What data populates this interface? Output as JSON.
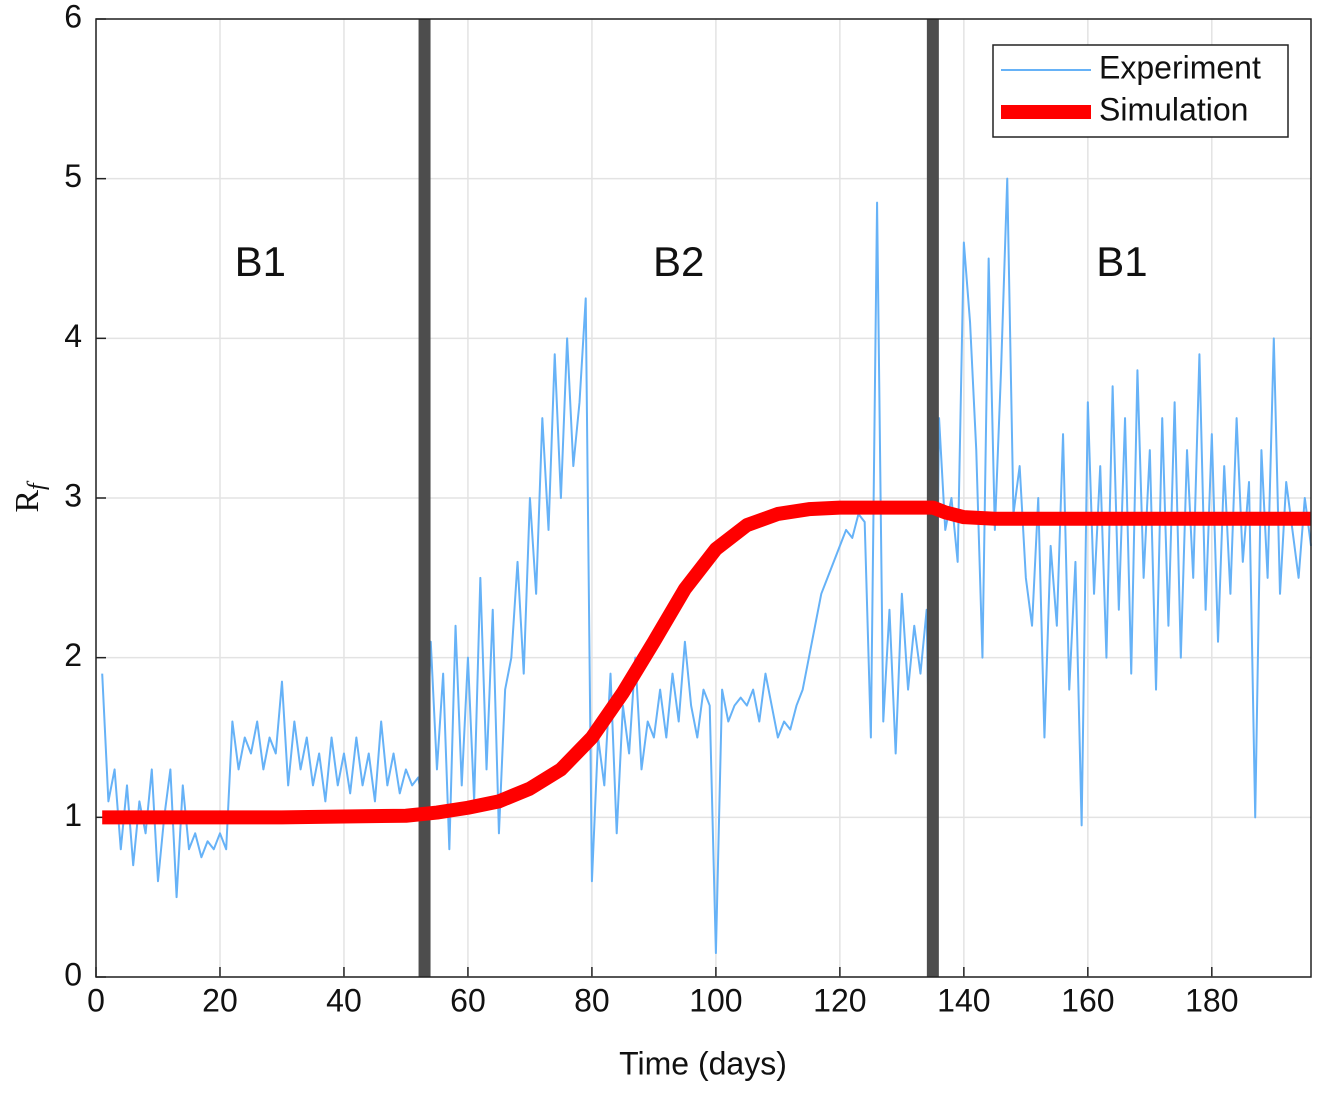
{
  "chart_data": {
    "type": "line",
    "xlabel": "Time (days)",
    "ylabel": "R",
    "ylabel_subscript": "f",
    "xlim": [
      0,
      196
    ],
    "ylim": [
      0,
      6
    ],
    "xticks": [
      0,
      20,
      40,
      60,
      80,
      100,
      120,
      140,
      160,
      180
    ],
    "yticks": [
      0,
      1,
      2,
      3,
      4,
      5,
      6
    ],
    "grid": true,
    "legend": "upper right",
    "vlines": [
      53,
      135
    ],
    "vline_color": "#4d4d4d",
    "annotations": [
      "B1",
      "B2",
      "B1"
    ],
    "series": [
      {
        "name": "Experiment",
        "color": "#66b2f7",
        "width": 2,
        "x": [
          1,
          2,
          3,
          4,
          5,
          6,
          7,
          8,
          9,
          10,
          11,
          12,
          13,
          14,
          15,
          16,
          17,
          18,
          19,
          20,
          21,
          22,
          23,
          24,
          25,
          26,
          27,
          28,
          29,
          30,
          31,
          32,
          33,
          34,
          35,
          36,
          37,
          38,
          39,
          40,
          41,
          42,
          43,
          44,
          45,
          46,
          47,
          48,
          49,
          50,
          51,
          52,
          53,
          54,
          55,
          56,
          57,
          58,
          59,
          60,
          61,
          62,
          63,
          64,
          65,
          66,
          67,
          68,
          69,
          70,
          71,
          72,
          73,
          74,
          75,
          76,
          77,
          78,
          79,
          80,
          81,
          82,
          83,
          84,
          85,
          86,
          87,
          88,
          89,
          90,
          91,
          92,
          93,
          94,
          95,
          96,
          97,
          98,
          99,
          100,
          101,
          102,
          103,
          104,
          105,
          106,
          107,
          108,
          109,
          110,
          111,
          112,
          113,
          114,
          115,
          116,
          117,
          118,
          119,
          120,
          121,
          122,
          123,
          124,
          125,
          126,
          127,
          128,
          129,
          130,
          131,
          132,
          133,
          134,
          135,
          136,
          137,
          138,
          139,
          140,
          141,
          142,
          143,
          144,
          145,
          146,
          147,
          148,
          149,
          150,
          151,
          152,
          153,
          154,
          155,
          156,
          157,
          158,
          159,
          160,
          161,
          162,
          163,
          164,
          165,
          166,
          167,
          168,
          169,
          170,
          171,
          172,
          173,
          174,
          175,
          176,
          177,
          178,
          179,
          180,
          181,
          182,
          183,
          184,
          185,
          186,
          187,
          188,
          189,
          190,
          191,
          192,
          193,
          194,
          195,
          196
        ],
        "values": [
          1.9,
          1.1,
          1.3,
          0.8,
          1.2,
          0.7,
          1.1,
          0.9,
          1.3,
          0.6,
          1.0,
          1.3,
          0.5,
          1.2,
          0.8,
          0.9,
          0.75,
          0.85,
          0.8,
          0.9,
          0.8,
          1.6,
          1.3,
          1.5,
          1.4,
          1.6,
          1.3,
          1.5,
          1.4,
          1.85,
          1.2,
          1.6,
          1.3,
          1.5,
          1.2,
          1.4,
          1.1,
          1.5,
          1.2,
          1.4,
          1.15,
          1.5,
          1.2,
          1.4,
          1.1,
          1.6,
          1.2,
          1.4,
          1.15,
          1.3,
          1.2,
          1.25,
          1.0,
          2.1,
          1.3,
          1.9,
          0.8,
          2.2,
          1.2,
          2.0,
          1.1,
          2.5,
          1.3,
          2.3,
          0.9,
          1.8,
          2.0,
          2.6,
          1.9,
          3.0,
          2.4,
          3.5,
          2.8,
          3.9,
          3.0,
          4.0,
          3.2,
          3.6,
          4.25,
          0.6,
          1.5,
          1.2,
          1.9,
          0.9,
          1.7,
          1.4,
          2.0,
          1.3,
          1.6,
          1.5,
          1.8,
          1.5,
          1.9,
          1.6,
          2.1,
          1.7,
          1.5,
          1.8,
          1.7,
          0.15,
          1.8,
          1.6,
          1.7,
          1.75,
          1.7,
          1.8,
          1.6,
          1.9,
          1.7,
          1.5,
          1.6,
          1.55,
          1.7,
          1.8,
          2.0,
          2.2,
          2.4,
          2.5,
          2.6,
          2.7,
          2.8,
          2.75,
          2.9,
          2.85,
          1.5,
          4.85,
          1.6,
          2.3,
          1.4,
          2.4,
          1.8,
          2.2,
          1.9,
          2.3,
          0.1,
          3.5,
          2.8,
          3.0,
          2.6,
          4.6,
          4.1,
          3.3,
          2.0,
          4.5,
          2.8,
          3.8,
          5.0,
          2.9,
          3.2,
          2.5,
          2.2,
          3.0,
          1.5,
          2.7,
          2.2,
          3.4,
          1.8,
          2.6,
          0.95,
          3.6,
          2.4,
          3.2,
          2.0,
          3.7,
          2.3,
          3.5,
          1.9,
          3.8,
          2.5,
          3.3,
          1.8,
          3.5,
          2.2,
          3.6,
          2.0,
          3.3,
          2.5,
          3.9,
          2.3,
          3.4,
          2.1,
          3.2,
          2.4,
          3.5,
          2.6,
          3.1,
          1.0,
          3.3,
          2.5,
          4.0,
          2.4,
          3.1,
          2.8,
          2.5,
          3.0,
          2.7
        ]
      },
      {
        "name": "Simulation",
        "color": "#ff0000",
        "width": 14,
        "x": [
          1,
          10,
          20,
          30,
          40,
          50,
          55,
          60,
          65,
          70,
          75,
          80,
          85,
          90,
          95,
          100,
          105,
          110,
          115,
          120,
          125,
          130,
          135,
          137,
          140,
          145,
          150,
          160,
          170,
          180,
          196
        ],
        "values": [
          1,
          1,
          1,
          1,
          1.005,
          1.01,
          1.03,
          1.06,
          1.1,
          1.18,
          1.3,
          1.5,
          1.78,
          2.1,
          2.43,
          2.68,
          2.83,
          2.9,
          2.93,
          2.94,
          2.94,
          2.94,
          2.94,
          2.91,
          2.88,
          2.87,
          2.87,
          2.87,
          2.87,
          2.87,
          2.87
        ]
      }
    ]
  }
}
